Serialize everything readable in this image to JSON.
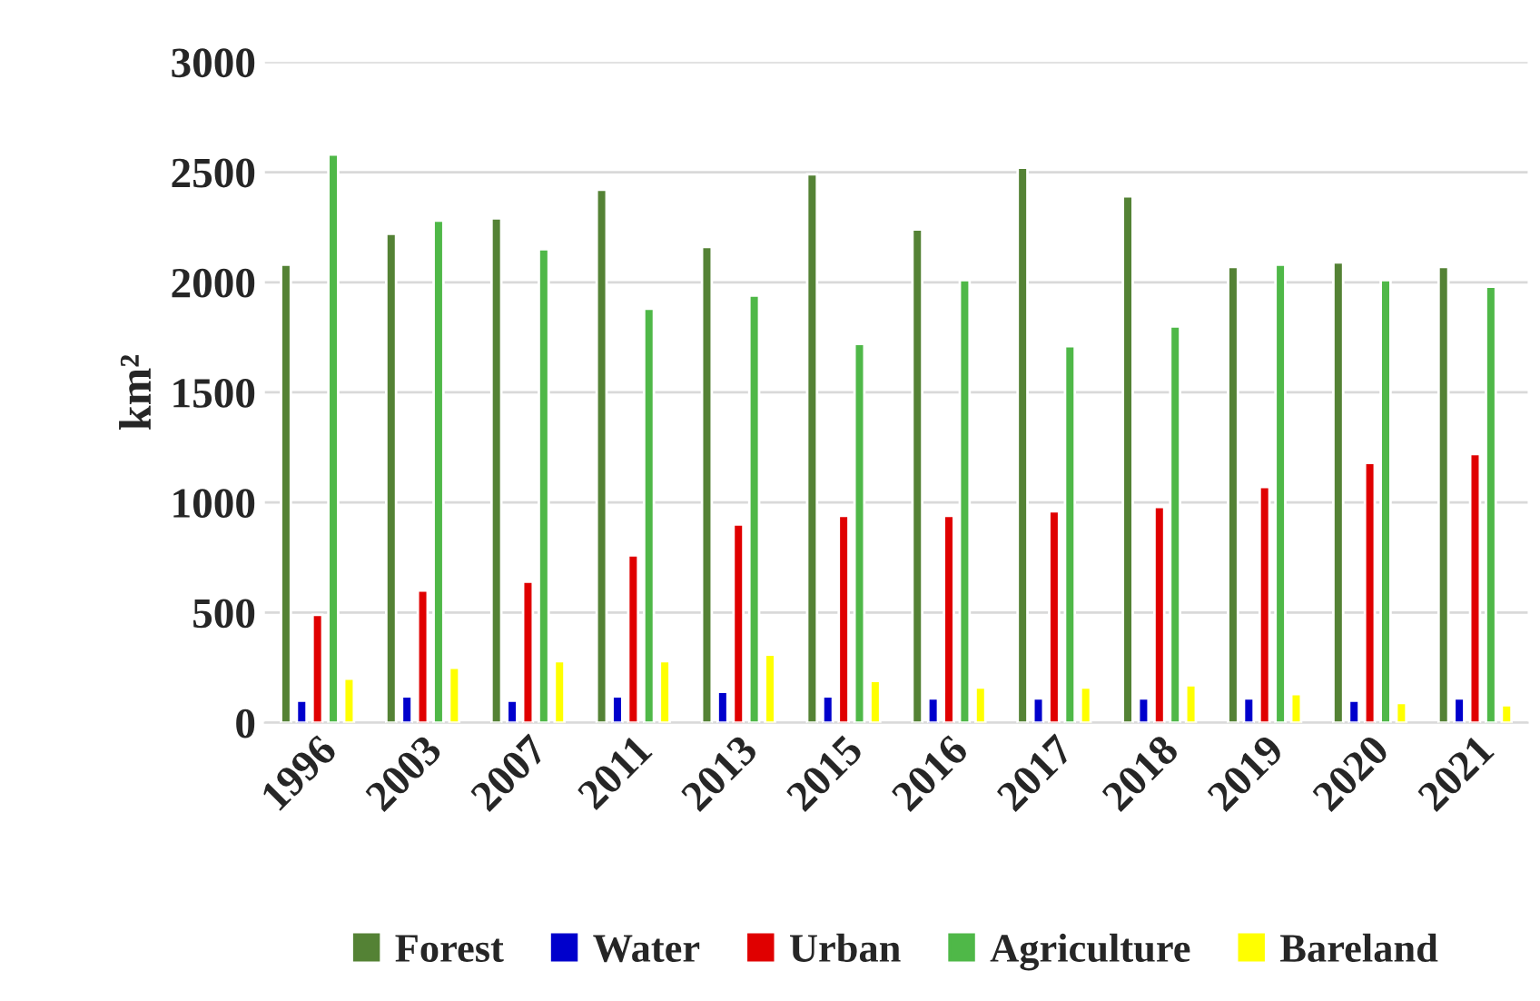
{
  "chart_data": {
    "type": "bar",
    "ylabel": "km²",
    "categories": [
      "1996",
      "2003",
      "2007",
      "2011",
      "2013",
      "2015",
      "2016",
      "2017",
      "2018",
      "2019",
      "2020",
      "2021"
    ],
    "series": [
      {
        "name": "Forest",
        "color": "#548235",
        "values": [
          2080,
          2220,
          2290,
          2420,
          2160,
          2490,
          2240,
          2520,
          2390,
          2070,
          2090,
          2070
        ]
      },
      {
        "name": "Water",
        "color": "#0000cc",
        "values": [
          100,
          120,
          100,
          120,
          140,
          120,
          110,
          110,
          110,
          110,
          100,
          110
        ]
      },
      {
        "name": "Urban",
        "color": "#e00000",
        "values": [
          490,
          600,
          640,
          760,
          900,
          940,
          940,
          960,
          980,
          1070,
          1180,
          1220
        ]
      },
      {
        "name": "Agriculture",
        "color": "#4fb848",
        "values": [
          2580,
          2280,
          2150,
          1880,
          1940,
          1720,
          2010,
          1710,
          1800,
          2080,
          2010,
          1980
        ]
      },
      {
        "name": "Bareland",
        "color": "#ffff00",
        "values": [
          200,
          250,
          280,
          280,
          310,
          190,
          160,
          160,
          170,
          130,
          90,
          80
        ]
      }
    ],
    "ylim": [
      0,
      3000
    ],
    "yticks": [
      0,
      500,
      1000,
      1500,
      2000,
      2500,
      3000
    ],
    "grid": "y",
    "legend": "bottom"
  }
}
